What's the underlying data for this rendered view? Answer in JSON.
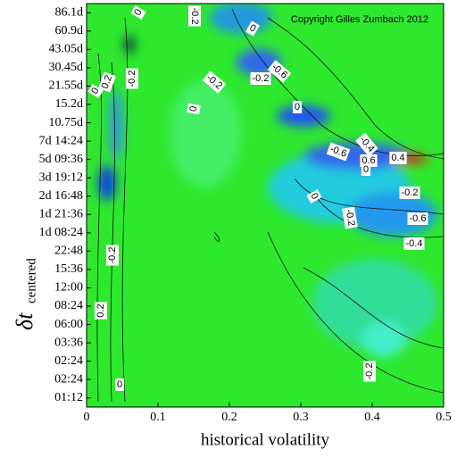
{
  "chart_data": {
    "type": "heatmap",
    "x_label": "historical volatility",
    "y_label": "δt",
    "y_label_subscript": "centered",
    "copyright": "Copyright Gilles Zumbach 2012",
    "categories": [
      "86.1d",
      "60.9d",
      "43.05d",
      "30.45d",
      "21.55d",
      "15.2d",
      "10.75d",
      "7d 14:24",
      "5d 09:36",
      "3d 19:12",
      "2d 16:48",
      "1d 21:36",
      "1d 08:24",
      "22:48",
      "15:36",
      "12:00",
      "08:24",
      "06:00",
      "03:36",
      "02:24",
      "02:24",
      "01:12"
    ],
    "xlim": [
      0,
      0.5
    ],
    "xticks": [
      0,
      0.1,
      0.2,
      0.3,
      0.4,
      0.5
    ],
    "background_color": "#2ee82e",
    "contour_labels": [
      "0",
      "-0.2",
      "0",
      "-0.6",
      "-0.2",
      "-0.2",
      "-0.2",
      "0.2",
      "0",
      "0",
      "0",
      "-0.4",
      "-0.6",
      "0.6",
      "0.4",
      "0",
      "0",
      "-0.2",
      "-0.6",
      "-0.2",
      "-0.4",
      "-0.2",
      "0.2",
      "-0.2",
      "0"
    ]
  }
}
